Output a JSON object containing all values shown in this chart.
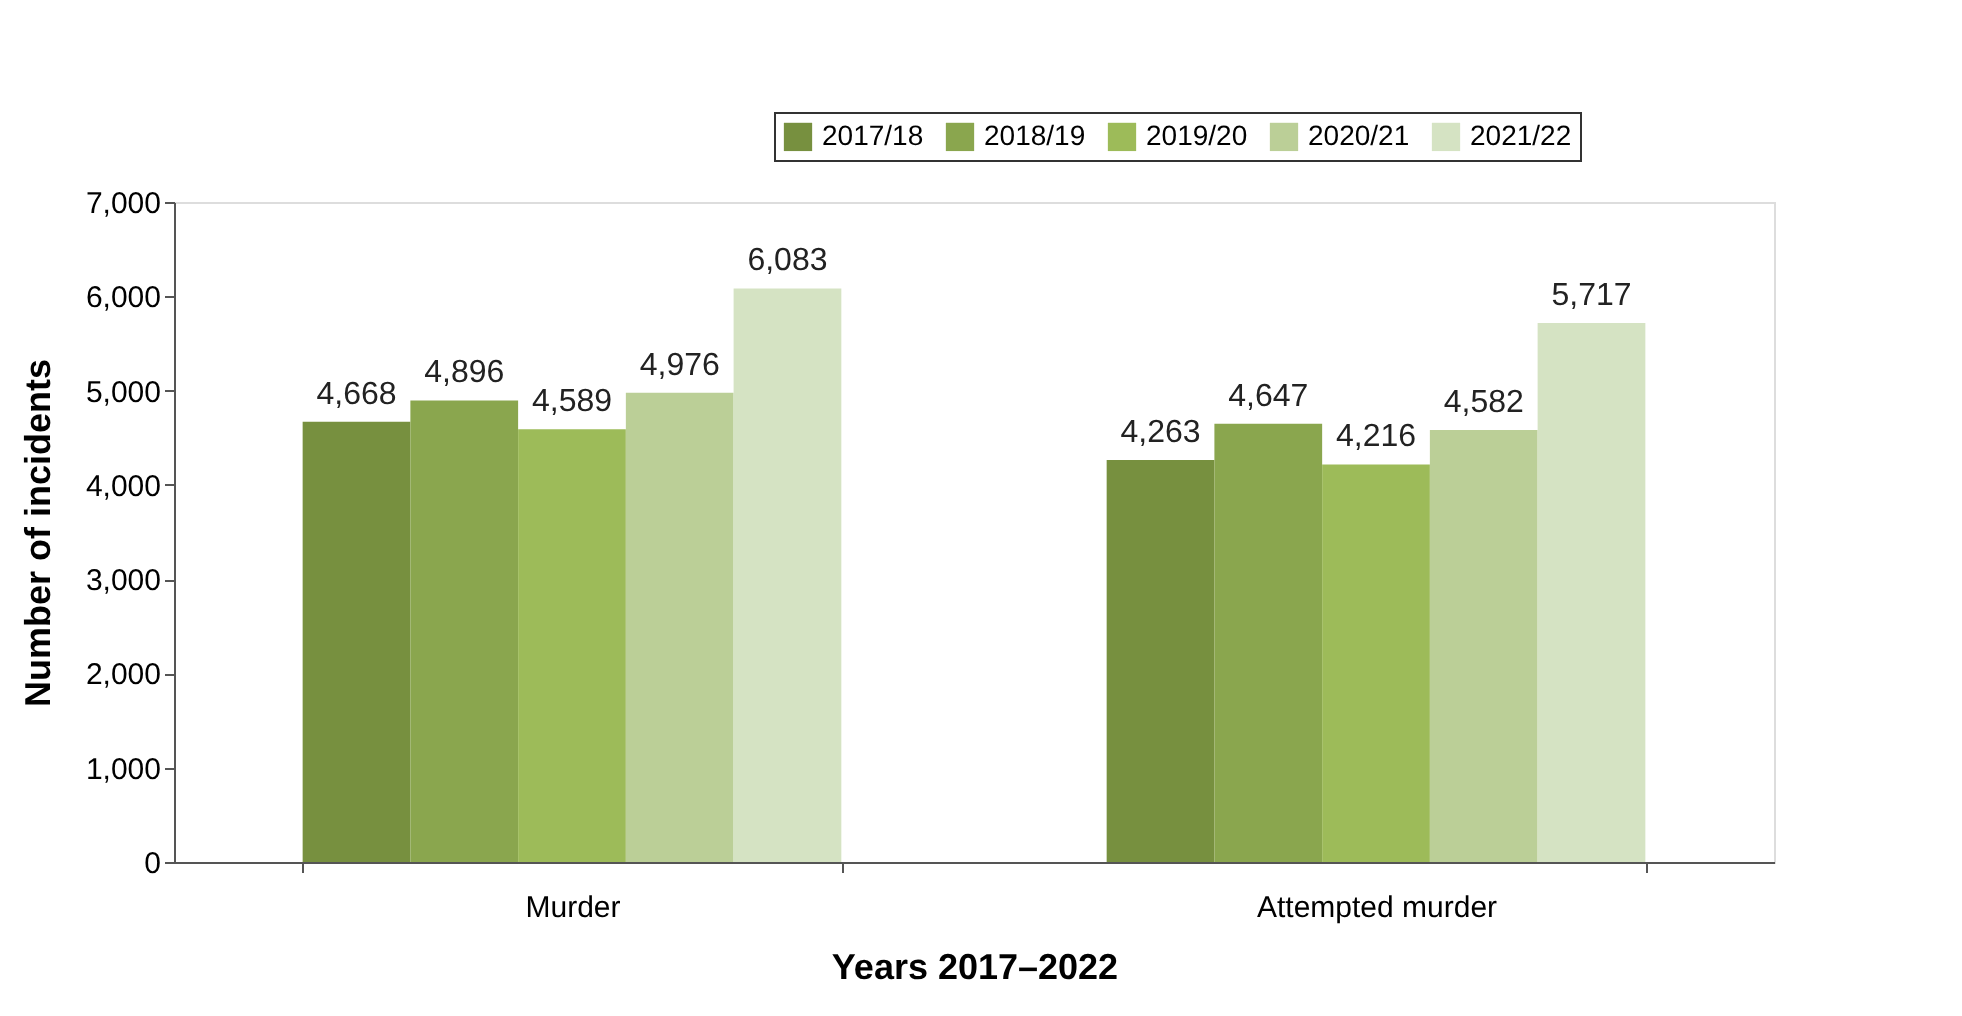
{
  "chart_data": {
    "type": "bar",
    "xlabel": "Years 2017–2022",
    "ylabel": "Number of incidents",
    "categories": [
      "Murder",
      "Attempted murder"
    ],
    "series": [
      {
        "name": "2017/18",
        "color": "#77903f",
        "values": [
          4668,
          4263
        ],
        "value_labels": [
          "4,668",
          "4,263"
        ]
      },
      {
        "name": "2018/19",
        "color": "#8aa64e",
        "values": [
          4896,
          4647
        ],
        "value_labels": [
          "4,896",
          "4,647"
        ]
      },
      {
        "name": "2019/20",
        "color": "#9dbb59",
        "values": [
          4589,
          4216
        ],
        "value_labels": [
          "4,589",
          "4,216"
        ]
      },
      {
        "name": "2020/21",
        "color": "#bbcf97",
        "values": [
          4976,
          4582
        ],
        "value_labels": [
          "4,976",
          "4,582"
        ]
      },
      {
        "name": "2021/22",
        "color": "#d5e3c3",
        "values": [
          6083,
          5717
        ],
        "value_labels": [
          "6,083",
          "5,717"
        ]
      }
    ],
    "ylim": [
      0,
      7000
    ],
    "yticks": [
      0,
      {
        "value": 1000,
        "label": "1,000"
      },
      {
        "value": 2000,
        "label": "2,000"
      },
      {
        "value": 3000,
        "label": "3,000"
      },
      {
        "value": 4000,
        "label": "4,000"
      },
      {
        "value": 5000,
        "label": "5,000"
      },
      {
        "value": 6000,
        "label": "6,000"
      },
      {
        "value": 7000,
        "label": "7,000"
      }
    ],
    "legend": "top right",
    "grid": false
  }
}
